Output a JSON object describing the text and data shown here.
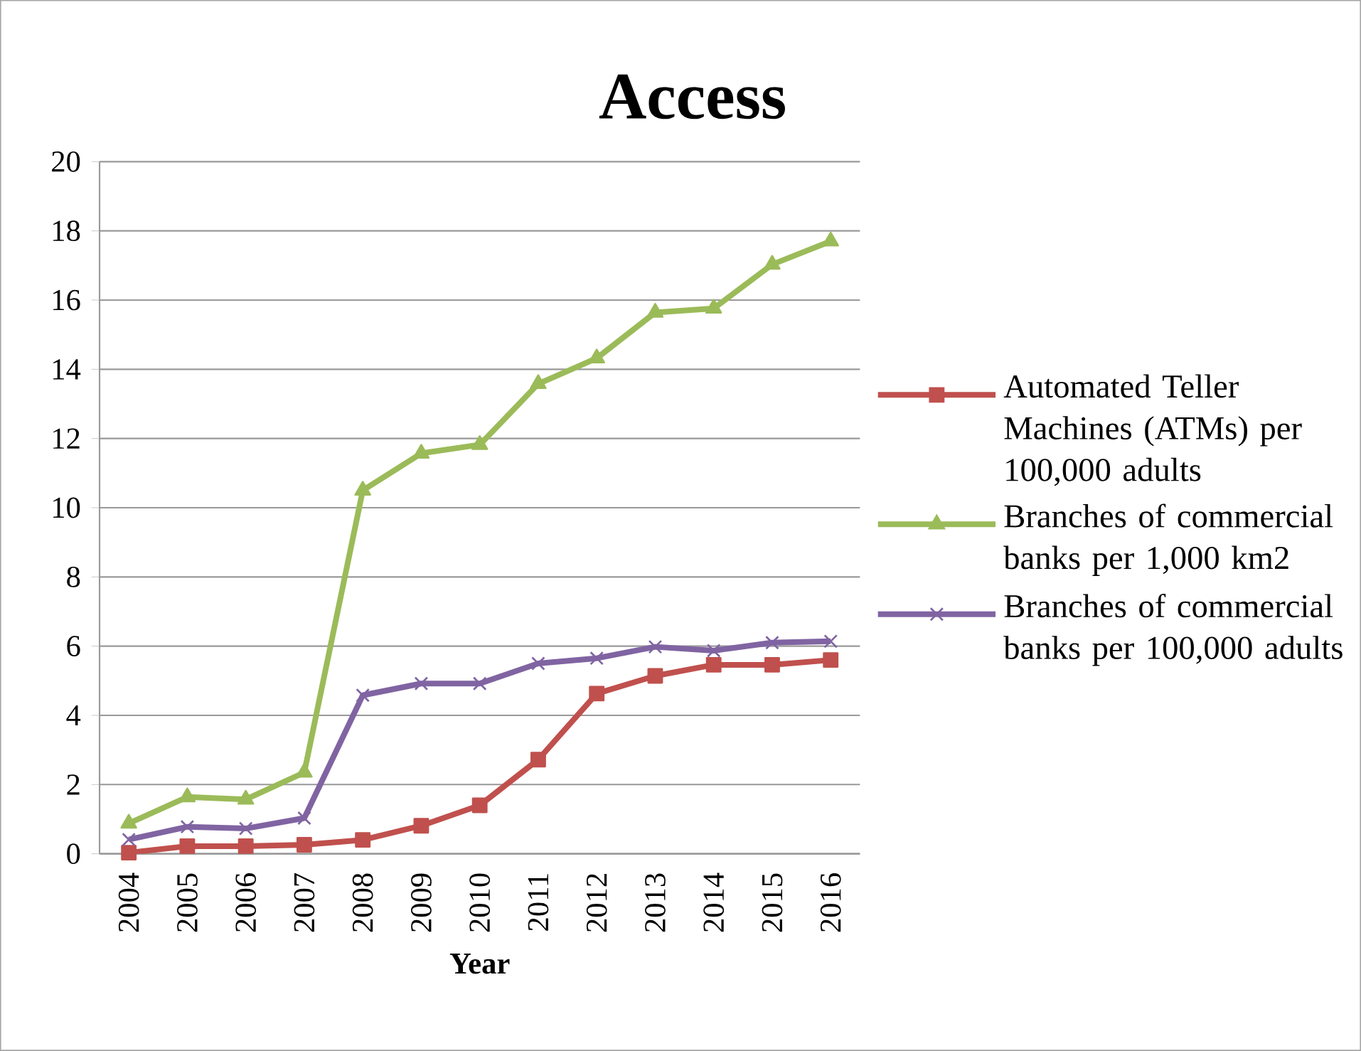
{
  "chart_data": {
    "type": "line",
    "title": "Access",
    "xlabel": "Year",
    "categories": [
      "2004",
      "2005",
      "2006",
      "2007",
      "2008",
      "2009",
      "2010",
      "2011",
      "2012",
      "2013",
      "2014",
      "2015",
      "2016"
    ],
    "series": [
      {
        "name": "Automated Teller Machines (ATMs) per 100,000 adults",
        "color": "#c0504d",
        "marker": "square",
        "values": [
          0.03,
          0.22,
          0.22,
          0.26,
          0.4,
          0.81,
          1.4,
          2.72,
          4.63,
          5.14,
          5.46,
          5.46,
          5.6
        ]
      },
      {
        "name": "Branches of commercial banks per 1,000 km2",
        "color": "#9bbb59",
        "marker": "triangle",
        "values": [
          0.88,
          1.64,
          1.57,
          2.35,
          10.5,
          11.57,
          11.82,
          13.58,
          14.32,
          15.64,
          15.76,
          17.03,
          17.7
        ]
      },
      {
        "name": "Branches of commercial banks per 100,000 adults",
        "color": "#8064a2",
        "marker": "cross",
        "values": [
          0.41,
          0.78,
          0.73,
          1.03,
          4.58,
          4.92,
          4.92,
          5.5,
          5.65,
          5.98,
          5.87,
          6.1,
          6.14
        ]
      }
    ],
    "ylim": [
      0,
      20
    ],
    "yticks": [
      0,
      2,
      4,
      6,
      8,
      10,
      12,
      14,
      16,
      18,
      20
    ],
    "grid": "y",
    "legend": "right"
  }
}
